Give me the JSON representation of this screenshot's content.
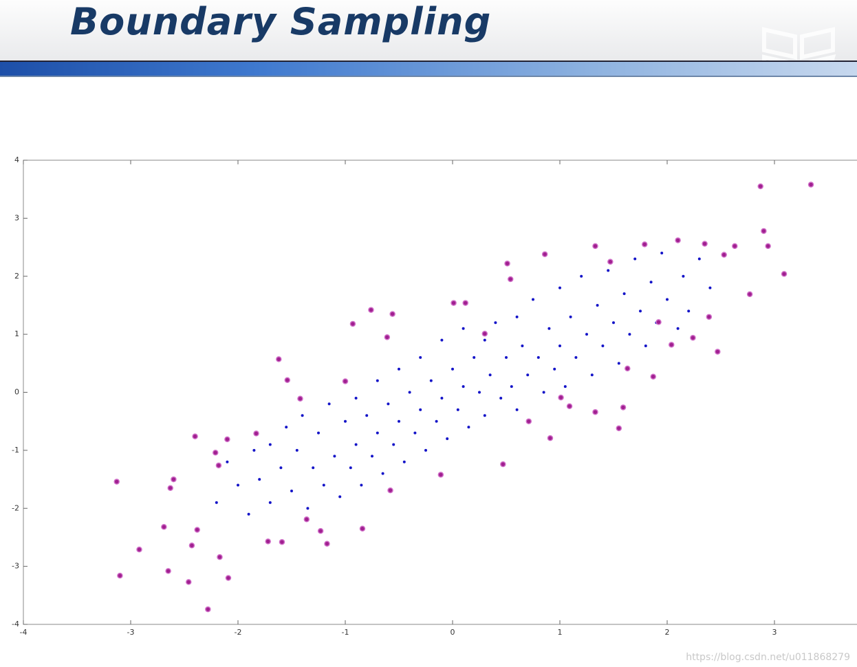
{
  "slide": {
    "title": "Boundary Sampling",
    "watermark": "https://blog.csdn.net/u011868279"
  },
  "chart_data": {
    "type": "scatter",
    "xlim": [
      -4,
      4
    ],
    "ylim": [
      -4,
      4
    ],
    "xticks": [
      -4,
      -3,
      -2,
      -1,
      0,
      1,
      2,
      3
    ],
    "yticks": [
      -4,
      -3,
      -2,
      -1,
      0,
      1,
      2,
      3,
      4
    ],
    "series": [
      {
        "color": "#1414c8",
        "x": [
          -2.2,
          -2.1,
          -2.0,
          -1.9,
          -1.85,
          -1.8,
          -1.7,
          -1.7,
          -1.6,
          -1.55,
          -1.5,
          -1.45,
          -1.4,
          -1.35,
          -1.3,
          -1.25,
          -1.2,
          -1.15,
          -1.1,
          -1.05,
          -1.0,
          -0.95,
          -0.9,
          -0.9,
          -0.85,
          -0.8,
          -0.75,
          -0.7,
          -0.7,
          -0.65,
          -0.6,
          -0.55,
          -0.5,
          -0.5,
          -0.45,
          -0.4,
          -0.35,
          -0.3,
          -0.3,
          -0.25,
          -0.2,
          -0.15,
          -0.1,
          -0.1,
          -0.05,
          0.0,
          0.05,
          0.1,
          0.1,
          0.15,
          0.2,
          0.25,
          0.3,
          0.3,
          0.35,
          0.4,
          0.45,
          0.5,
          0.55,
          0.6,
          0.6,
          0.65,
          0.7,
          0.75,
          0.8,
          0.85,
          0.9,
          0.95,
          1.0,
          1.0,
          1.05,
          1.1,
          1.15,
          1.2,
          1.25,
          1.3,
          1.35,
          1.4,
          1.45,
          1.5,
          1.55,
          1.6,
          1.65,
          1.7,
          1.75,
          1.8,
          1.85,
          1.9,
          1.95,
          2.0,
          2.1,
          2.15,
          2.2,
          2.3,
          2.4
        ],
        "values": [
          -1.9,
          -1.2,
          -1.6,
          -2.1,
          -1.0,
          -1.5,
          -0.9,
          -1.9,
          -1.3,
          -0.6,
          -1.7,
          -1.0,
          -0.4,
          -2.0,
          -1.3,
          -0.7,
          -1.6,
          -0.2,
          -1.1,
          -1.8,
          -0.5,
          -1.3,
          -0.1,
          -0.9,
          -1.6,
          -0.4,
          -1.1,
          0.2,
          -0.7,
          -1.4,
          -0.2,
          -0.9,
          0.4,
          -0.5,
          -1.2,
          0.0,
          -0.7,
          0.6,
          -0.3,
          -1.0,
          0.2,
          -0.5,
          0.9,
          -0.1,
          -0.8,
          0.4,
          -0.3,
          0.1,
          1.1,
          -0.6,
          0.6,
          0.0,
          0.9,
          -0.4,
          0.3,
          1.2,
          -0.1,
          0.6,
          0.1,
          1.3,
          -0.3,
          0.8,
          0.3,
          1.6,
          0.6,
          0.0,
          1.1,
          0.4,
          1.8,
          0.8,
          0.1,
          1.3,
          0.6,
          2.0,
          1.0,
          0.3,
          1.5,
          0.8,
          2.1,
          1.2,
          0.5,
          1.7,
          1.0,
          2.3,
          1.4,
          0.8,
          1.9,
          1.2,
          2.4,
          1.6,
          1.1,
          2.0,
          1.4,
          2.3,
          1.8
        ]
      },
      {
        "color": "#a02090",
        "x": [
          -3.13,
          -3.1,
          -2.92,
          -2.69,
          -2.65,
          -2.63,
          -2.6,
          -2.46,
          -2.43,
          -2.4,
          -2.38,
          -2.28,
          -2.21,
          -2.18,
          -2.17,
          -2.09,
          -2.1,
          -1.83,
          -1.72,
          -1.62,
          -1.59,
          -1.54,
          -1.42,
          -1.36,
          -1.23,
          -1.17,
          -1.0,
          -0.93,
          -0.84,
          -0.76,
          -0.61,
          -0.56,
          -0.58,
          -0.11,
          0.01,
          0.12,
          0.3,
          0.47,
          0.51,
          0.54,
          0.71,
          0.86,
          0.91,
          1.01,
          1.09,
          1.33,
          1.33,
          1.47,
          1.55,
          1.59,
          1.63,
          1.79,
          1.87,
          1.92,
          2.04,
          2.1,
          2.24,
          2.35,
          2.39,
          2.47,
          2.53,
          2.63,
          2.77,
          2.87,
          2.9,
          2.94,
          3.09,
          3.34
        ],
        "values": [
          -1.54,
          -3.16,
          -2.71,
          -2.32,
          -3.08,
          -1.65,
          -1.5,
          -3.27,
          -2.64,
          -0.76,
          -2.37,
          -3.74,
          -1.04,
          -1.26,
          -2.84,
          -3.2,
          -0.81,
          -0.71,
          -2.57,
          0.57,
          -2.58,
          0.21,
          -0.11,
          -2.19,
          -2.39,
          -2.61,
          0.19,
          1.18,
          -2.35,
          1.42,
          0.95,
          1.35,
          -1.69,
          -1.42,
          1.54,
          1.54,
          1.01,
          -1.24,
          2.22,
          1.95,
          -0.5,
          2.38,
          -0.79,
          -0.09,
          -0.24,
          2.52,
          -0.34,
          2.25,
          -0.62,
          -0.26,
          0.41,
          2.55,
          0.27,
          1.21,
          0.82,
          2.62,
          0.94,
          2.56,
          1.3,
          0.7,
          2.37,
          2.52,
          1.69,
          3.55,
          2.78,
          2.52,
          2.04,
          3.58
        ]
      }
    ]
  }
}
